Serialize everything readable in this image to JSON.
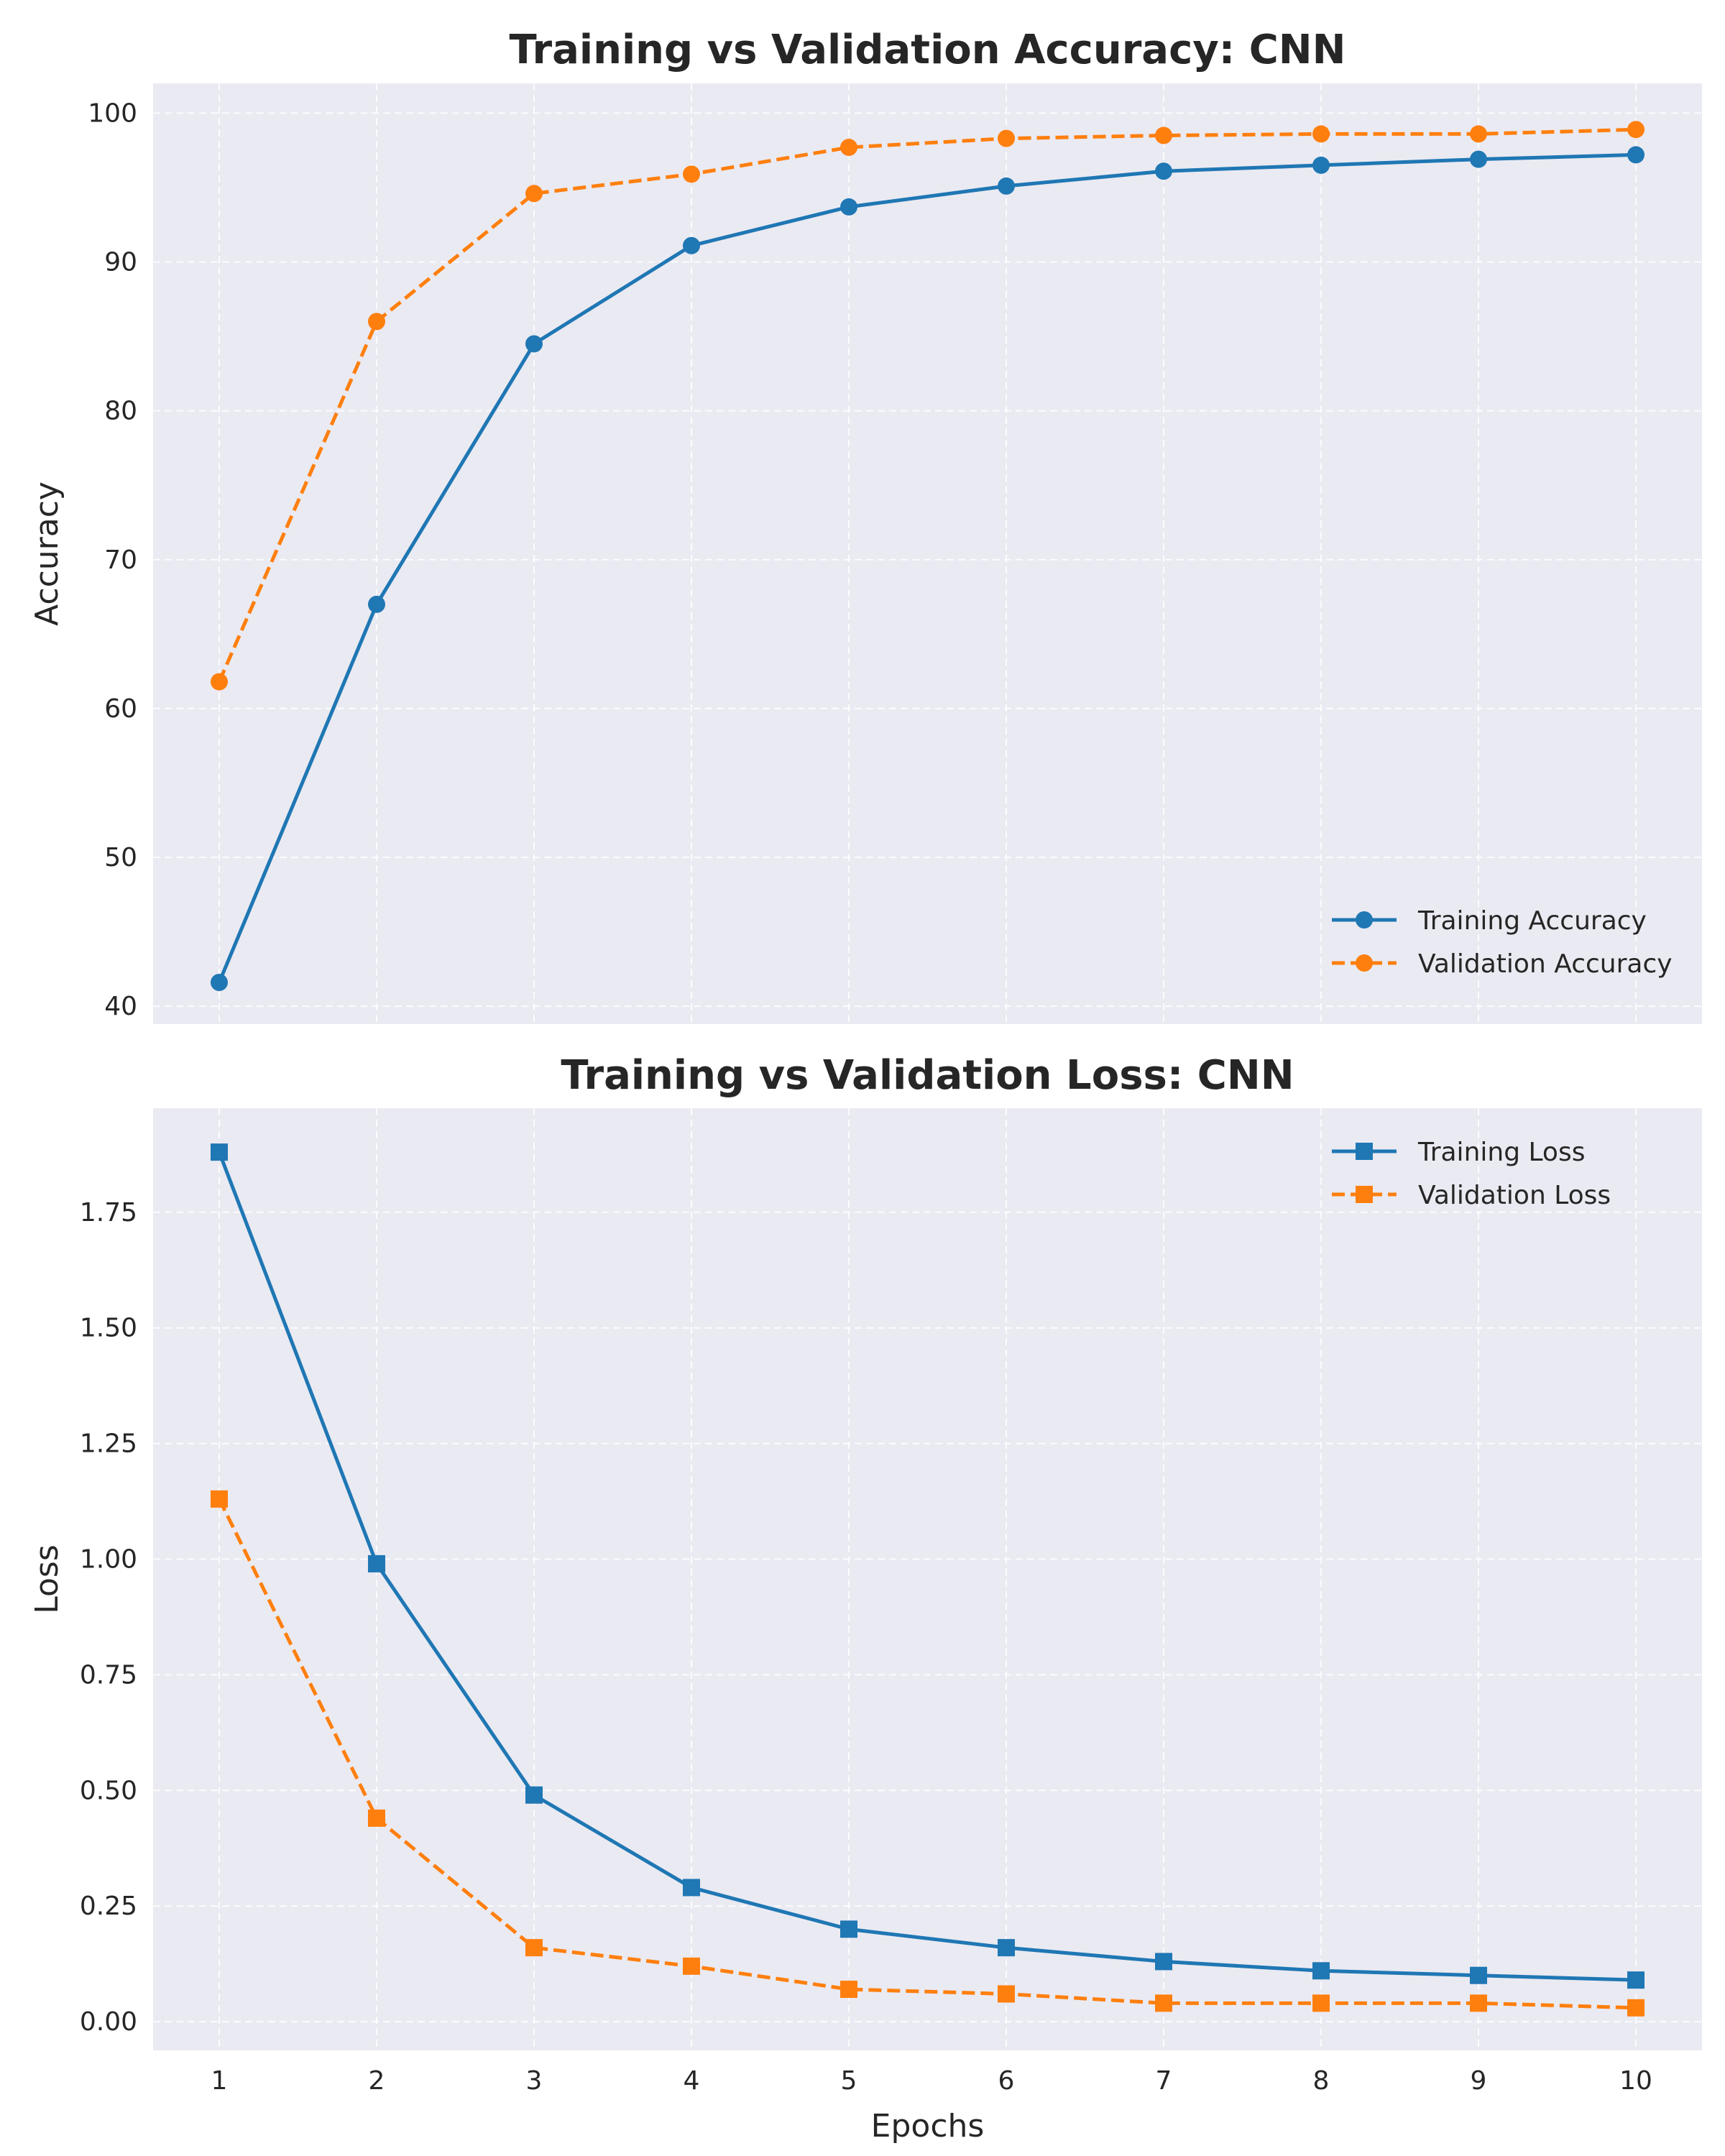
{
  "colors": {
    "background": "#eaeaf2",
    "grid": "#ffffff",
    "training": "#1f77b4",
    "validation": "#ff7f0e"
  },
  "chart_data": [
    {
      "type": "line",
      "title": "Training vs Validation Accuracy: CNN",
      "xlabel": "",
      "ylabel": "Accuracy",
      "x": [
        1,
        2,
        3,
        4,
        5,
        6,
        7,
        8,
        9,
        10
      ],
      "xticks": [
        "1",
        "2",
        "3",
        "4",
        "5",
        "6",
        "7",
        "8",
        "9",
        "10"
      ],
      "xlim": [
        0.58,
        10.42
      ],
      "ylim": [
        38.8,
        102.0
      ],
      "yticks": [
        "40",
        "50",
        "60",
        "70",
        "80",
        "90",
        "100"
      ],
      "show_xtick_labels": false,
      "grid": true,
      "legend_position": "lower right",
      "series": [
        {
          "name": "Training Accuracy",
          "values": [
            41.6,
            67.0,
            84.5,
            91.1,
            93.7,
            95.1,
            96.1,
            96.5,
            96.9,
            97.2
          ],
          "color": "#1f77b4",
          "dashed": false,
          "marker": "circle"
        },
        {
          "name": "Validation Accuracy",
          "values": [
            61.8,
            86.0,
            94.6,
            95.9,
            97.7,
            98.3,
            98.5,
            98.6,
            98.6,
            98.9
          ],
          "color": "#ff7f0e",
          "dashed": true,
          "marker": "circle"
        }
      ]
    },
    {
      "type": "line",
      "title": "Training vs Validation Loss: CNN",
      "xlabel": "Epochs",
      "ylabel": "Loss",
      "x": [
        1,
        2,
        3,
        4,
        5,
        6,
        7,
        8,
        9,
        10
      ],
      "xticks": [
        "1",
        "2",
        "3",
        "4",
        "5",
        "6",
        "7",
        "8",
        "9",
        "10"
      ],
      "xlim": [
        0.58,
        10.42
      ],
      "ylim": [
        -0.062,
        1.975
      ],
      "yticks": [
        "0.00",
        "0.25",
        "0.50",
        "0.75",
        "1.00",
        "1.25",
        "1.50",
        "1.75"
      ],
      "show_xtick_labels": true,
      "grid": true,
      "legend_position": "upper right",
      "series": [
        {
          "name": "Training Loss",
          "values": [
            1.88,
            0.99,
            0.49,
            0.29,
            0.2,
            0.16,
            0.13,
            0.11,
            0.1,
            0.09
          ],
          "color": "#1f77b4",
          "dashed": false,
          "marker": "square"
        },
        {
          "name": "Validation Loss",
          "values": [
            1.13,
            0.44,
            0.16,
            0.12,
            0.07,
            0.06,
            0.04,
            0.04,
            0.04,
            0.03
          ],
          "color": "#ff7f0e",
          "dashed": true,
          "marker": "square"
        }
      ]
    }
  ]
}
